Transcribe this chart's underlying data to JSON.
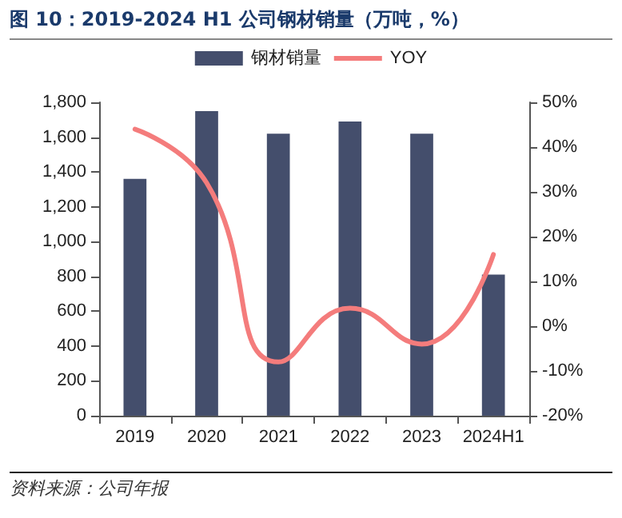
{
  "chart_data": {
    "type": "bar",
    "title": "图 10：2019-2024 H1 公司钢材销量（万吨，%）",
    "categories": [
      "2019",
      "2020",
      "2021",
      "2022",
      "2023",
      "2024H1"
    ],
    "series": [
      {
        "name": "钢材销量",
        "color": "#444e6c",
        "values": [
          1360,
          1750,
          1620,
          1690,
          1620,
          810
        ]
      },
      {
        "name": "YOY",
        "type": "line",
        "axis": "y2",
        "color": "#f47c7c",
        "marker": "none",
        "values": [
          44,
          32,
          -8,
          4,
          -4,
          16
        ]
      }
    ],
    "ylim": [
      0,
      1800
    ],
    "yticks": [
      0,
      200,
      400,
      600,
      800,
      {
        "value": 1000,
        "label": "1,000"
      },
      {
        "value": 1200,
        "label": "1,200"
      },
      {
        "value": 1400,
        "label": "1,400"
      },
      {
        "value": 1600,
        "label": "1,600"
      },
      {
        "value": 1800,
        "label": "1,800"
      }
    ],
    "y2lim": [
      -20,
      50
    ],
    "y2ticks": [
      {
        "value": -20,
        "label": "-20%"
      },
      {
        "value": -10,
        "label": "-10%"
      },
      {
        "value": 0,
        "label": "0%"
      },
      {
        "value": 10,
        "label": "10%"
      },
      {
        "value": 20,
        "label": "20%"
      },
      {
        "value": 30,
        "label": "30%"
      },
      {
        "value": 40,
        "label": "40%"
      },
      {
        "value": 50,
        "label": "50%"
      }
    ],
    "legend": "top",
    "grid": false,
    "annotations": [
      "资料来源：公司年报"
    ]
  }
}
